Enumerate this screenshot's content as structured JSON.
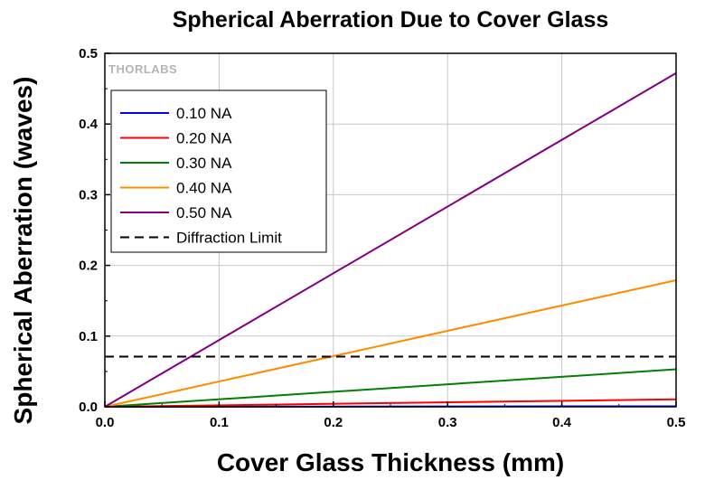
{
  "chart_data": {
    "type": "line",
    "title": "Spherical Aberration Due to Cover Glass",
    "xlabel": "Cover Glass Thickness (mm)",
    "ylabel": "Spherical Aberration (waves)",
    "xlim": [
      0,
      0.5
    ],
    "ylim": [
      0,
      0.5
    ],
    "xticks": [
      "0.0",
      "0.1",
      "0.2",
      "0.3",
      "0.4",
      "0.5"
    ],
    "yticks": [
      "0.0",
      "0.1",
      "0.2",
      "0.3",
      "0.4",
      "0.5"
    ],
    "grid": true,
    "legend_position": "top-left",
    "watermark": "THORLABS",
    "series": [
      {
        "name": "0.10 NA",
        "color": "#0000ff",
        "dash": "solid",
        "x": [
          0,
          0.5
        ],
        "y": [
          0,
          0.0007
        ]
      },
      {
        "name": "0.20 NA",
        "color": "#ff0000",
        "dash": "solid",
        "x": [
          0,
          0.5
        ],
        "y": [
          0,
          0.0105
        ]
      },
      {
        "name": "0.30 NA",
        "color": "#008000",
        "dash": "solid",
        "x": [
          0,
          0.5
        ],
        "y": [
          0,
          0.053
        ]
      },
      {
        "name": "0.40 NA",
        "color": "#ff8c00",
        "dash": "solid",
        "x": [
          0,
          0.5
        ],
        "y": [
          0,
          0.179
        ]
      },
      {
        "name": "0.50 NA",
        "color": "#800080",
        "dash": "solid",
        "x": [
          0,
          0.5
        ],
        "y": [
          0,
          0.472
        ]
      },
      {
        "name": "Diffraction Limit",
        "color": "#000000",
        "dash": "dashed",
        "x": [
          0,
          0.5
        ],
        "y": [
          0.071,
          0.071
        ]
      }
    ]
  }
}
